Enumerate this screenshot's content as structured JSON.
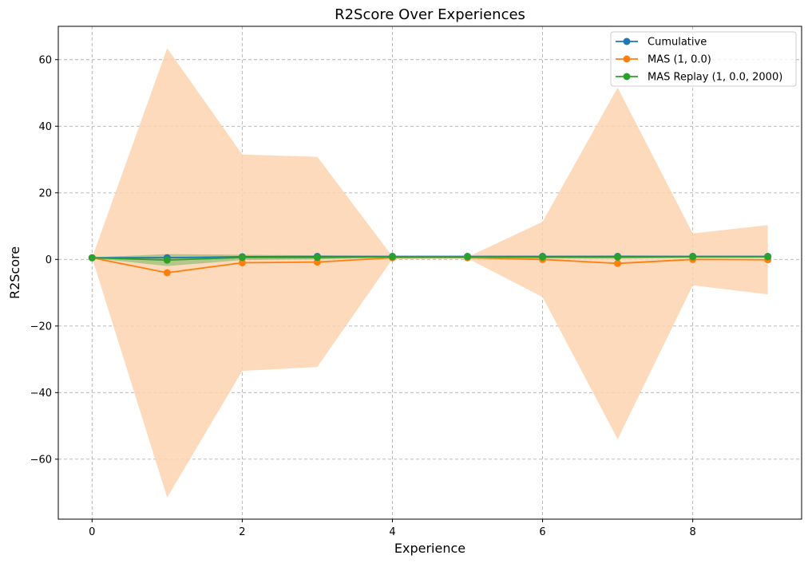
{
  "chart_data": {
    "type": "line",
    "title": "R2Score Over Experiences",
    "xlabel": "Experience",
    "ylabel": "R2Score",
    "xlim": [
      -0.45,
      9.45
    ],
    "ylim": [
      -78,
      70
    ],
    "xticks": [
      0,
      2,
      4,
      6,
      8
    ],
    "xtick_labels": [
      "0",
      "2",
      "4",
      "6",
      "8"
    ],
    "yticks": [
      -60,
      -40,
      -20,
      0,
      20,
      40,
      60
    ],
    "ytick_labels": [
      "−60",
      "−40",
      "−20",
      "0",
      "20",
      "40",
      "60"
    ],
    "grid": true,
    "legend_position": "top-right",
    "x": [
      0,
      1,
      2,
      3,
      4,
      5,
      6,
      7,
      8,
      9
    ],
    "series": [
      {
        "name": "Cumulative",
        "color": "#1f77b4",
        "values": [
          0.5,
          0.5,
          0.8,
          0.9,
          0.9,
          0.9,
          0.9,
          0.9,
          0.9,
          0.9
        ]
      },
      {
        "name": "MAS (1, 0.0)",
        "color": "#ff7f0e",
        "values": [
          0.5,
          -4.0,
          -1.0,
          -0.8,
          0.5,
          0.5,
          0.0,
          -1.2,
          0.0,
          -0.1
        ],
        "band_lower": [
          0.5,
          -71.5,
          -33.5,
          -32.3,
          0.1,
          0.3,
          -11.3,
          -54.0,
          -7.8,
          -10.5
        ],
        "band_upper": [
          0.5,
          63.4,
          31.5,
          30.8,
          0.9,
          0.7,
          11.3,
          51.6,
          7.8,
          10.3
        ],
        "band_color": "#fdd3b0"
      },
      {
        "name": "MAS Replay (1, 0.0, 2000)",
        "color": "#2ca02c",
        "values": [
          0.5,
          -0.2,
          0.6,
          0.6,
          0.8,
          0.8,
          0.7,
          0.7,
          0.8,
          0.8
        ],
        "band_lower": [
          0.4,
          -2.0,
          -0.2,
          0.0,
          0.6,
          0.6,
          0.3,
          0.2,
          0.5,
          0.5
        ],
        "band_upper": [
          0.6,
          1.6,
          1.4,
          1.2,
          1.0,
          1.0,
          1.1,
          1.2,
          1.1,
          1.1
        ],
        "band_color": "#2ca02c"
      }
    ]
  }
}
